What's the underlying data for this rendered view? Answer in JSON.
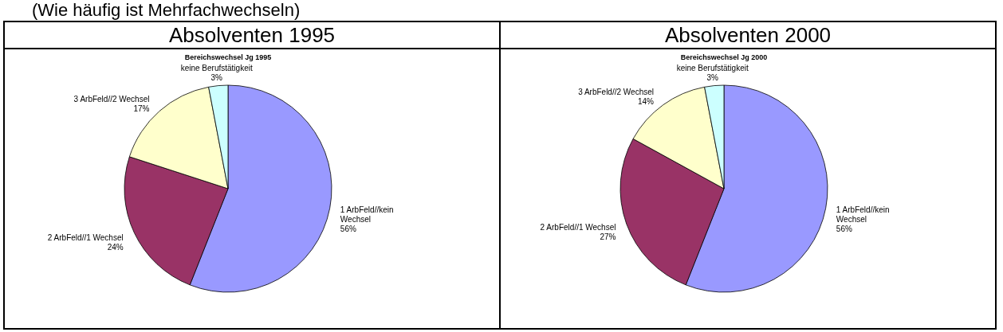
{
  "chart_data": [
    {
      "type": "pie",
      "title": "Absolventen 1995",
      "subtitle": "Bereichswechsel Jg 1995",
      "annotations": [
        "(Wie häufig ist Mehrfachwechseln)"
      ],
      "categories": [
        "1 ArbFeld//kein Wechsel",
        "2 ArbFeld//1 Wechsel",
        "3 ArbFeld//2 Wechsel",
        "keine Berufstätigkeit"
      ],
      "values": [
        56,
        24,
        17,
        3
      ],
      "value_labels": [
        "56%",
        "24%",
        "17%",
        "3%"
      ],
      "colors": [
        "#9999ff",
        "#993366",
        "#ffffcc",
        "#ccffff"
      ]
    },
    {
      "type": "pie",
      "title": "Absolventen 2000",
      "subtitle": "Bereichswechsel Jg 2000",
      "categories": [
        "1 ArbFeld//kein Wechsel",
        "2 ArbFeld//1 Wechsel",
        "3 ArbFeld//2 Wechsel",
        "keine Berufstätigkeit"
      ],
      "values": [
        56,
        27,
        14,
        3
      ],
      "value_labels": [
        "56%",
        "27%",
        "14%",
        "3%"
      ],
      "colors": [
        "#9999ff",
        "#993366",
        "#ffffcc",
        "#ccffff"
      ]
    }
  ]
}
